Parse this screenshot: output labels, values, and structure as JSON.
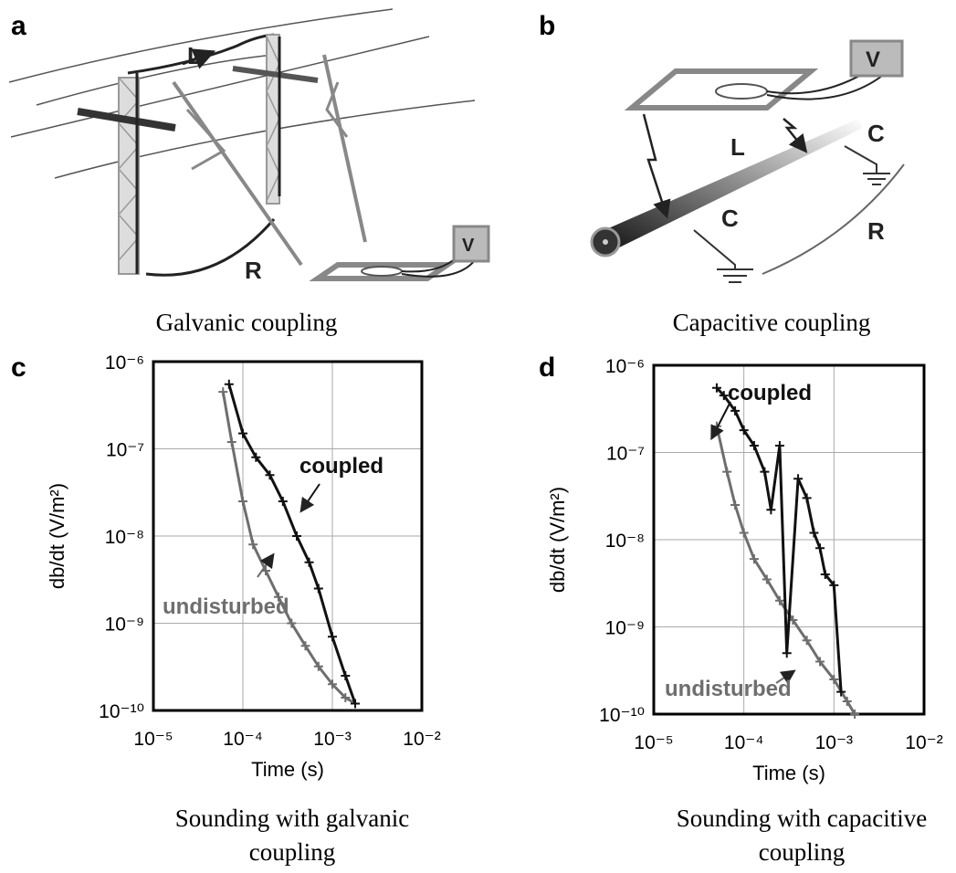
{
  "panels": [
    {
      "letter": "a",
      "caption": "Galvanic coupling",
      "labels": [
        "L",
        "R",
        "V"
      ]
    },
    {
      "letter": "b",
      "caption": "Capacitive coupling",
      "labels": [
        "V",
        "L",
        "C",
        "C",
        "R"
      ]
    },
    {
      "letter": "c",
      "caption": [
        "Sounding with galvanic",
        "coupling"
      ]
    },
    {
      "letter": "d",
      "caption": [
        "Sounding with capacitive",
        "coupling"
      ]
    }
  ],
  "chart_data": [
    {
      "type": "line",
      "log_x": true,
      "log_y": true,
      "grid": true,
      "x_label": "Time (s)",
      "y_label": "db/dt (V/m²)",
      "xlim": [
        1e-05,
        0.01
      ],
      "ylim": [
        1e-10,
        1e-06
      ],
      "xticks": [
        {
          "value": 1e-05,
          "label": "10⁻⁵"
        },
        {
          "value": 0.0001,
          "label": "10⁻⁴"
        },
        {
          "value": 0.001,
          "label": "10⁻³"
        },
        {
          "value": 0.01,
          "label": "10⁻²"
        }
      ],
      "yticks": [
        {
          "value": 1e-10,
          "label": "10⁻¹⁰"
        },
        {
          "value": 1e-09,
          "label": "10⁻⁹"
        },
        {
          "value": 1e-08,
          "label": "10⁻⁸"
        },
        {
          "value": 1e-07,
          "label": "10⁻⁷"
        },
        {
          "value": 1e-06,
          "label": "10⁻⁶"
        }
      ],
      "series": [
        {
          "name": "undisturbed",
          "color": "#6e6e6e",
          "x": [
            6e-05,
            7.5e-05,
            0.0001,
            0.00013,
            0.00018,
            0.00025,
            0.00035,
            0.0005,
            0.0007,
            0.001,
            0.0014,
            0.0018
          ],
          "values": [
            4.5e-07,
            1.2e-07,
            2.5e-08,
            8e-09,
            4e-09,
            2e-09,
            1e-09,
            5.5e-10,
            3.2e-10,
            2e-10,
            1.4e-10,
            1.2e-10
          ]
        },
        {
          "name": "coupled",
          "color": "#111111",
          "x": [
            7e-05,
            0.0001,
            0.00014,
            0.0002,
            0.00028,
            0.0004,
            0.00055,
            0.0007,
            0.001,
            0.0014,
            0.0018
          ],
          "values": [
            5.5e-07,
            1.5e-07,
            8e-08,
            5e-08,
            2.5e-08,
            1e-08,
            5e-09,
            2.5e-09,
            7e-10,
            2.5e-10,
            1.2e-10
          ]
        }
      ]
    },
    {
      "type": "line",
      "log_x": true,
      "log_y": true,
      "grid": true,
      "x_label": "Time (s)",
      "y_label": "db/dt (V/m²)",
      "xlim": [
        1e-05,
        0.01
      ],
      "ylim": [
        1e-10,
        1e-06
      ],
      "xticks": [
        {
          "value": 1e-05,
          "label": "10⁻⁵"
        },
        {
          "value": 0.0001,
          "label": "10⁻⁴"
        },
        {
          "value": 0.001,
          "label": "10⁻³"
        },
        {
          "value": 0.01,
          "label": "10⁻²"
        }
      ],
      "yticks": [
        {
          "value": 1e-10,
          "label": "10⁻¹⁰"
        },
        {
          "value": 1e-09,
          "label": "10⁻⁹"
        },
        {
          "value": 1e-08,
          "label": "10⁻⁸"
        },
        {
          "value": 1e-07,
          "label": "10⁻⁷"
        },
        {
          "value": 1e-06,
          "label": "10⁻⁶"
        }
      ],
      "series": [
        {
          "name": "undisturbed",
          "color": "#6e6e6e",
          "x": [
            5e-05,
            6.5e-05,
            8e-05,
            0.0001,
            0.00013,
            0.00018,
            0.00025,
            0.00035,
            0.0005,
            0.0007,
            0.001,
            0.0014,
            0.0017
          ],
          "values": [
            2e-07,
            6e-08,
            2.5e-08,
            1.2e-08,
            6e-09,
            3.5e-09,
            2e-09,
            1.2e-09,
            7e-10,
            4e-10,
            2.5e-10,
            1.4e-10,
            1e-10
          ]
        },
        {
          "name": "coupled",
          "color": "#111111",
          "x": [
            5e-05,
            6e-05,
            8e-05,
            0.0001,
            0.00013,
            0.00017,
            0.0002,
            0.00025,
            0.0003,
            0.0004,
            0.0005,
            0.0006,
            0.0007,
            0.0008,
            0.001,
            0.0012
          ],
          "values": [
            5.5e-07,
            4.5e-07,
            3e-07,
            1.8e-07,
            1.2e-07,
            6e-08,
            2.2e-08,
            1.2e-07,
            5e-10,
            5e-08,
            3e-08,
            1.2e-08,
            8e-09,
            4e-09,
            3e-09,
            1.8e-10
          ]
        }
      ]
    }
  ]
}
